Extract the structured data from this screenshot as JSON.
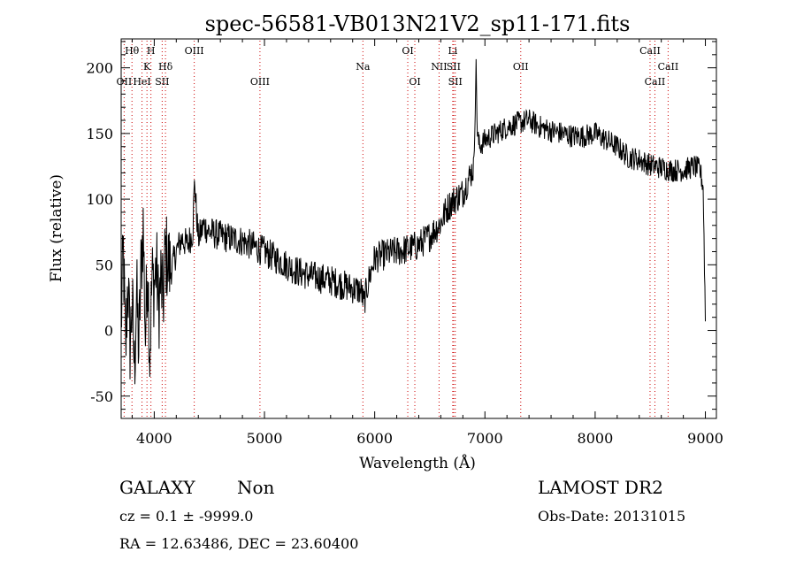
{
  "chart_data": {
    "type": "line",
    "title": "spec-56581-VB013N21V2_sp11-171.fits",
    "xlabel": "Wavelength (Å)",
    "ylabel": "Flux (relative)",
    "xlim": [
      3700,
      9100
    ],
    "ylim": [
      -67,
      222
    ],
    "xticks": [
      4000,
      5000,
      6000,
      7000,
      8000,
      9000
    ],
    "yticks": [
      -50,
      0,
      50,
      100,
      150,
      200
    ],
    "grid": false,
    "colors": {
      "spectrum": "#000000",
      "lines": "#cc0000"
    },
    "spectral_lines": [
      {
        "label": "Hθ",
        "x": 3798,
        "row": 1
      },
      {
        "label": "OII",
        "x": 3727,
        "row": 3
      },
      {
        "label": "H",
        "x": 3970,
        "row": 1
      },
      {
        "label": "K",
        "x": 3934,
        "row": 2
      },
      {
        "label": "HeI",
        "x": 3889,
        "row": 3
      },
      {
        "label": "SII",
        "x": 4072,
        "row": 3
      },
      {
        "label": "Hδ",
        "x": 4102,
        "row": 2
      },
      {
        "label": "OIII",
        "x": 4363,
        "row": 1
      },
      {
        "label": "OIII",
        "x": 4959,
        "row": 3
      },
      {
        "label": "Na",
        "x": 5893,
        "row": 2
      },
      {
        "label": "OI",
        "x": 6300,
        "row": 1
      },
      {
        "label": "OI",
        "x": 6364,
        "row": 3
      },
      {
        "label": "Li",
        "x": 6708,
        "row": 1
      },
      {
        "label": "NII",
        "x": 6584,
        "row": 2
      },
      {
        "label": "SII",
        "x": 6716,
        "row": 2
      },
      {
        "label": "SII",
        "x": 6731,
        "row": 3
      },
      {
        "label": "OII",
        "x": 7325,
        "row": 2
      },
      {
        "label": "CaII",
        "x": 8498,
        "row": 1
      },
      {
        "label": "CaII",
        "x": 8662,
        "row": 2
      },
      {
        "label": "CaII",
        "x": 8542,
        "row": 3
      }
    ],
    "series": [
      {
        "x": [
          3700,
          3720,
          3740,
          3760,
          3780,
          3800,
          3820,
          3840,
          3860,
          3880,
          3900,
          3920,
          3940,
          3960,
          3980,
          4000,
          4020,
          4040,
          4060,
          4080,
          4100,
          4150,
          4200,
          4250,
          4300,
          4350,
          4363,
          4400,
          4450,
          4500,
          4600,
          4700,
          4800,
          4900,
          5000,
          5100,
          5200,
          5300,
          5400,
          5500,
          5600,
          5700,
          5800,
          5880,
          5900,
          5950,
          6000,
          6100,
          6200,
          6300,
          6400,
          6500,
          6600,
          6650,
          6700,
          6800,
          6850,
          6900,
          6920,
          6930,
          6950,
          7000,
          7100,
          7200,
          7300,
          7400,
          7500,
          7600,
          7700,
          7800,
          7900,
          8000,
          8100,
          8200,
          8300,
          8400,
          8500,
          8600,
          8700,
          8800,
          8900,
          8950,
          8980,
          9000
        ],
        "y": [
          5,
          60,
          -20,
          40,
          -10,
          20,
          -30,
          30,
          -15,
          45,
          80,
          -5,
          55,
          -20,
          40,
          35,
          50,
          15,
          40,
          20,
          60,
          45,
          60,
          70,
          65,
          75,
          115,
          70,
          80,
          75,
          72,
          70,
          68,
          64,
          60,
          55,
          50,
          45,
          42,
          40,
          38,
          35,
          32,
          30,
          20,
          40,
          55,
          58,
          60,
          62,
          65,
          72,
          82,
          92,
          98,
          105,
          115,
          125,
          205,
          150,
          140,
          145,
          150,
          155,
          158,
          160,
          155,
          152,
          150,
          148,
          148,
          150,
          145,
          140,
          132,
          130,
          126,
          124,
          122,
          122,
          125,
          122,
          110,
          10
        ]
      }
    ]
  },
  "info": {
    "object_class": "GALAXY",
    "subclass": "Non",
    "survey": "LAMOST DR2",
    "cz": "cz = 0.1 ± -9999.0",
    "obs_date": "Obs-Date: 20131015",
    "coords": "RA =  12.63486, DEC =  23.60400"
  }
}
